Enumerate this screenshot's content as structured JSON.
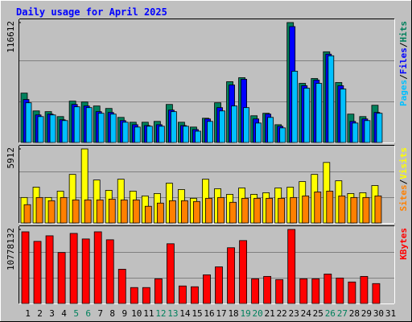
{
  "title": "Daily usage for April 2025",
  "legend_separator": "/",
  "highlighted_categories": [
    "5",
    "6",
    "12",
    "13",
    "19",
    "20",
    "26",
    "27"
  ],
  "highlight_color": "#00805C",
  "chart_data": [
    {
      "type": "bar",
      "series": [
        {
          "name": "Hits",
          "color": "#00805C",
          "values": [
            48000,
            30700,
            30000,
            25200,
            40200,
            39400,
            35500,
            33100,
            24400,
            19700,
            19700,
            20500,
            37000,
            19700,
            15000,
            23600,
            38600,
            59100,
            63000,
            26000,
            28400,
            17300,
            116612,
            57500,
            62200,
            88200,
            58300,
            27600,
            25200,
            36200,
            null
          ]
        },
        {
          "name": "Files",
          "color": "#0000FF",
          "values": [
            41800,
            26800,
            27600,
            22100,
            37000,
            35500,
            30000,
            29200,
            21300,
            17300,
            16500,
            17300,
            31500,
            16500,
            12600,
            22900,
            33900,
            55900,
            61500,
            22900,
            27600,
            15800,
            112700,
            55200,
            60700,
            85900,
            55200,
            20500,
            22900,
            29200,
            null
          ]
        },
        {
          "name": "Pages",
          "color": "#00C0FF",
          "values": [
            38600,
            25200,
            26800,
            21300,
            34700,
            33900,
            28400,
            27600,
            19700,
            15000,
            15800,
            15800,
            30000,
            15800,
            11000,
            20500,
            30700,
            35500,
            33900,
            18900,
            24400,
            14200,
            69300,
            52800,
            57500,
            84300,
            52000,
            18900,
            21300,
            28400,
            null
          ]
        }
      ],
      "ylim": [
        0,
        116612
      ],
      "yticks": [
        116612
      ]
    },
    {
      "type": "bar",
      "series": [
        {
          "name": "Visits",
          "color": "#FFFF00",
          "values": [
            2034,
            2861,
            2034,
            2543,
            3878,
            5912,
            3433,
            2606,
            3496,
            2543,
            2161,
            2352,
            3178,
            2670,
            1971,
            3496,
            2733,
            2289,
            2797,
            2289,
            2416,
            2797,
            2861,
            3306,
            3878,
            4831,
            3369,
            2352,
            2416,
            2988,
            null
          ]
        },
        {
          "name": "Sites",
          "color": "#FF8000",
          "values": [
            1462,
            2034,
            1780,
            2034,
            1843,
            1843,
            1843,
            1907,
            1843,
            1843,
            1335,
            1589,
            1780,
            1780,
            1716,
            1971,
            2034,
            1653,
            1971,
            1971,
            1971,
            1971,
            2034,
            2161,
            2479,
            2543,
            2161,
            2034,
            2034,
            2161,
            null
          ]
        }
      ],
      "ylim": [
        0,
        5912
      ],
      "yticks": [
        5912
      ]
    },
    {
      "type": "bar",
      "categories": [
        "1",
        "2",
        "3",
        "4",
        "5",
        "6",
        "7",
        "8",
        "9",
        "10",
        "11",
        "12",
        "13",
        "14",
        "15",
        "16",
        "17",
        "18",
        "19",
        "20",
        "21",
        "22",
        "23",
        "24",
        "25",
        "26",
        "27",
        "28",
        "29",
        "30",
        "31"
      ],
      "series": [
        {
          "name": "KBytes",
          "color": "#FF0000",
          "values": [
            10430450,
            9039700,
            9851000,
            7417200,
            10198600,
            9387400,
            10430450,
            9271500,
            4983500,
            2317900,
            2317900,
            3592700,
            8692000,
            2549700,
            2433800,
            4172200,
            5331200,
            8112600,
            9155600,
            3592700,
            3940400,
            3476800,
            10778132,
            3592700,
            3592700,
            4288100,
            3708600,
            3129100,
            3940400,
            2897300,
            null
          ]
        }
      ],
      "ylim": [
        0,
        10778132
      ],
      "yticks": [
        10778132
      ]
    }
  ]
}
